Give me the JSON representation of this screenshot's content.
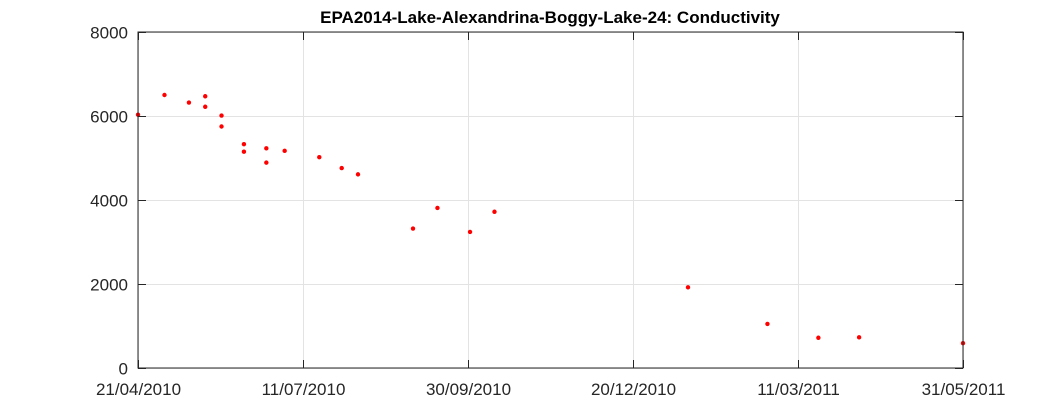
{
  "chart_data": {
    "type": "scatter",
    "title": "EPA2014-Lake-Alexandrina-Boggy-Lake-24: Conductivity",
    "xlabel": "",
    "ylabel": "",
    "x_axis_type": "date",
    "xlim": [
      "2010-04-21",
      "2011-05-31"
    ],
    "ylim": [
      0,
      8000
    ],
    "x_ticks": [
      "2010-04-21",
      "2010-07-11",
      "2010-09-30",
      "2010-12-20",
      "2011-03-11",
      "2011-05-31"
    ],
    "x_tick_labels": [
      "21/04/2010",
      "11/07/2010",
      "30/09/2010",
      "20/12/2010",
      "11/03/2011",
      "31/05/2011"
    ],
    "y_ticks": [
      0,
      2000,
      4000,
      6000,
      8000
    ],
    "y_tick_labels": [
      "0",
      "2000",
      "4000",
      "6000",
      "8000"
    ],
    "grid": true,
    "marker_color": "#ff0000",
    "series": [
      {
        "points": [
          {
            "x": "2010-04-21",
            "y": 6030
          },
          {
            "x": "2010-05-04",
            "y": 6500
          },
          {
            "x": "2010-05-16",
            "y": 6320
          },
          {
            "x": "2010-05-24",
            "y": 6470
          },
          {
            "x": "2010-05-24",
            "y": 6220
          },
          {
            "x": "2010-06-01",
            "y": 6010
          },
          {
            "x": "2010-06-01",
            "y": 5750
          },
          {
            "x": "2010-06-12",
            "y": 5330
          },
          {
            "x": "2010-06-12",
            "y": 5150
          },
          {
            "x": "2010-06-23",
            "y": 5230
          },
          {
            "x": "2010-06-23",
            "y": 4890
          },
          {
            "x": "2010-07-02",
            "y": 5170
          },
          {
            "x": "2010-07-19",
            "y": 5020
          },
          {
            "x": "2010-07-30",
            "y": 4760
          },
          {
            "x": "2010-08-07",
            "y": 4610
          },
          {
            "x": "2010-09-03",
            "y": 3320
          },
          {
            "x": "2010-09-15",
            "y": 3810
          },
          {
            "x": "2010-10-01",
            "y": 3240
          },
          {
            "x": "2010-10-13",
            "y": 3720
          },
          {
            "x": "2011-01-16",
            "y": 1920
          },
          {
            "x": "2011-02-24",
            "y": 1050
          },
          {
            "x": "2011-03-21",
            "y": 720
          },
          {
            "x": "2011-04-10",
            "y": 730
          },
          {
            "x": "2011-05-31",
            "y": 590
          }
        ]
      }
    ]
  }
}
